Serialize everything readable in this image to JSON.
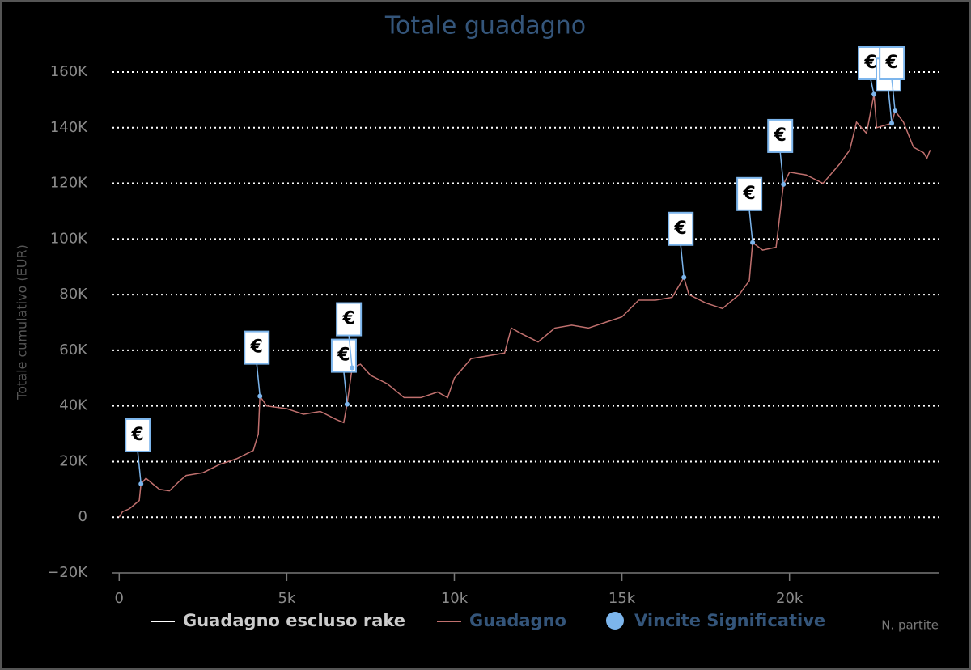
{
  "chart_data": {
    "type": "line",
    "title": "Totale guadagno",
    "y_label": "Totale cumulativo (EUR)",
    "x_label": "N. partite",
    "xlim": [
      -200,
      24450
    ],
    "ylim": [
      -20000,
      160000
    ],
    "xticks": [
      {
        "value": 0,
        "label": "0"
      },
      {
        "value": 5000,
        "label": "5k"
      },
      {
        "value": 10000,
        "label": "10k"
      },
      {
        "value": 15000,
        "label": "15k"
      },
      {
        "value": 20000,
        "label": "20k"
      }
    ],
    "yticks": [
      {
        "value": -20000,
        "label": "−20K"
      },
      0,
      {
        "value": 20000,
        "label": "20K"
      },
      {
        "value": 40000,
        "label": "40K"
      },
      {
        "value": 60000,
        "label": "60K"
      },
      {
        "value": 80000,
        "label": "80K"
      },
      {
        "value": 100000,
        "label": "100K"
      },
      {
        "value": 120000,
        "label": "120K"
      },
      {
        "value": 140000,
        "label": "140K"
      },
      {
        "value": 160000,
        "label": "160K"
      }
    ],
    "grid": true,
    "flag_text": "€",
    "series": [
      {
        "name": "Guadagno escluso rake",
        "color": "#ffffff",
        "x": [],
        "values": []
      },
      {
        "name": "Guadagno",
        "color": "#c0706e",
        "x": [
          0,
          100,
          300,
          500,
          600,
          650,
          800,
          1000,
          1200,
          1500,
          1800,
          2000,
          2500,
          3000,
          3500,
          4000,
          4150,
          4200,
          4400,
          5000,
          5500,
          6000,
          6500,
          6700,
          6800,
          6950,
          7200,
          7500,
          8000,
          8500,
          9000,
          9500,
          9800,
          10000,
          10500,
          11000,
          11500,
          11700,
          12000,
          12500,
          13000,
          13500,
          14000,
          14500,
          15000,
          15500,
          16000,
          16500,
          16850,
          17000,
          17500,
          18000,
          18500,
          18800,
          18900,
          19200,
          19600,
          19820,
          20000,
          20500,
          21000,
          21500,
          21800,
          22000,
          22300,
          22520,
          22600,
          23050,
          23150,
          23400,
          23700,
          24000,
          24100,
          24200
        ],
        "values": [
          0,
          2000,
          3000,
          5000,
          6000,
          12000,
          14000,
          12000,
          10000,
          9500,
          13000,
          15000,
          16000,
          19000,
          21000,
          24000,
          30000,
          43500,
          40000,
          39000,
          37000,
          38000,
          35000,
          34000,
          40600,
          53700,
          55000,
          51000,
          48000,
          43000,
          43000,
          45000,
          43000,
          50000,
          57000,
          58000,
          59000,
          68000,
          66000,
          63000,
          68000,
          69000,
          68000,
          70000,
          72000,
          78000,
          78000,
          79000,
          86200,
          80000,
          77000,
          75000,
          80000,
          85000,
          98700,
          96000,
          97000,
          119600,
          124000,
          123000,
          120000,
          127000,
          132000,
          142000,
          138000,
          152000,
          140000,
          141600,
          146000,
          142000,
          133000,
          131000,
          129000,
          132000
        ]
      },
      {
        "name": "Vincite Significative",
        "color": "#7cb5ec",
        "x": [
          650,
          4200,
          6800,
          6950,
          16850,
          18900,
          19820,
          22520,
          23050,
          23150
        ],
        "values": [
          12000,
          43500,
          40600,
          53700,
          86200,
          98700,
          119600,
          152000,
          141600,
          146000
        ]
      }
    ]
  }
}
